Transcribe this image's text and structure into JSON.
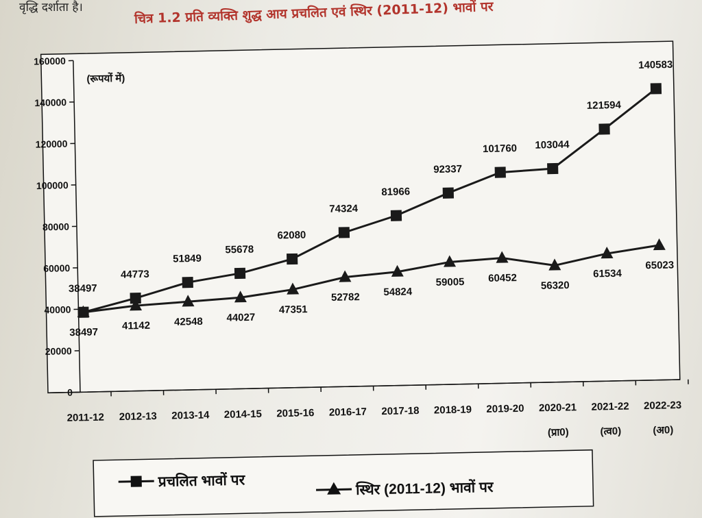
{
  "page": {
    "top_text": "वृद्धि दर्शाता है।",
    "caption": "चित्र 1.2  प्रति व्यक्ति शुद्ध आय प्रचलित एवं स्थिर (2011-12) भावों पर"
  },
  "chart_data": {
    "type": "line",
    "title": "चित्र 1.2  प्रति व्यक्ति शुद्ध आय प्रचलित एवं स्थिर (2011-12) भावों पर",
    "unit_label": "(रूपयों में)",
    "categories": [
      "2011-12",
      "2012-13",
      "2013-14",
      "2014-15",
      "2015-16",
      "2016-17",
      "2017-18",
      "2018-19",
      "2019-20",
      "2020-21",
      "2021-22",
      "2022-23"
    ],
    "category_notes": [
      "",
      "",
      "",
      "",
      "",
      "",
      "",
      "",
      "",
      "(प्रा0)",
      "(त्व0)",
      "(अ0)"
    ],
    "y_ticks": [
      0,
      20000,
      40000,
      60000,
      80000,
      100000,
      120000,
      140000,
      160000
    ],
    "ylim": [
      0,
      160000
    ],
    "series": [
      {
        "name": "प्रचलित भावों पर",
        "marker": "square",
        "color": "#1a1a1a",
        "values": [
          38497,
          44773,
          51849,
          55678,
          62080,
          74324,
          81966,
          92337,
          101760,
          103044,
          121594,
          140583
        ],
        "labels": [
          "38497",
          "44773",
          "51849",
          "55678",
          "62080",
          "74324",
          "81966",
          "92337",
          "101760",
          "103044",
          "121594",
          "140583"
        ]
      },
      {
        "name": "स्थिर (2011-12) भावों पर",
        "marker": "triangle",
        "color": "#1a1a1a",
        "values": [
          38497,
          41142,
          42548,
          44027,
          47351,
          52782,
          54824,
          59005,
          60452,
          56320,
          61534,
          65023
        ],
        "labels": [
          "38497",
          "41142",
          "42548",
          "44027",
          "47351",
          "52782",
          "54824",
          "59005",
          "60452",
          "56320",
          "61534",
          "65023"
        ]
      }
    ],
    "grid": false,
    "legend_position": "bottom"
  }
}
